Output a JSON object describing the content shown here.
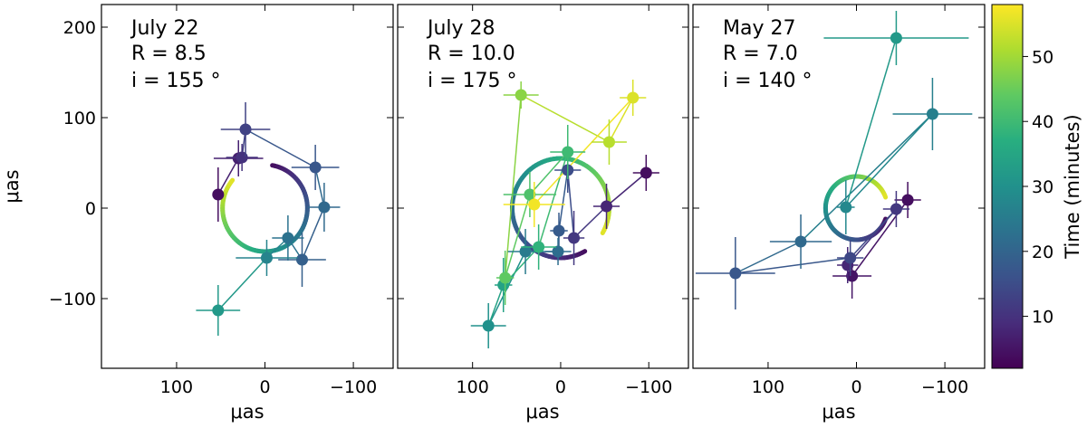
{
  "chart_data": {
    "type": "scatter",
    "xlabel": "μas",
    "ylabel": "μas",
    "xlim": [
      185,
      -145
    ],
    "ylim": [
      -177,
      225
    ],
    "x_ticks": [
      100,
      0,
      -100
    ],
    "x_tick_labels": [
      "100",
      "0",
      "−100"
    ],
    "y_ticks": [
      200,
      100,
      0,
      -100
    ],
    "y_tick_labels": [
      "200",
      "100",
      "0",
      "−100"
    ],
    "colorbar": {
      "label": "Time (minutes)",
      "min": 2,
      "max": 58,
      "ticks": [
        10,
        20,
        30,
        40,
        50
      ],
      "tick_labels": [
        "10",
        "20",
        "30",
        "40",
        "50"
      ],
      "colormap": "viridis"
    },
    "panels": [
      {
        "date": "July 22",
        "r_text": "R = 8.5",
        "i_text": "i = 155 °",
        "R": 8.5,
        "inclination": 155,
        "model_orbit": {
          "center": [
            0,
            0
          ],
          "radius": 48,
          "start_angle_deg": 80,
          "sweep_deg": -300,
          "t_start": 4,
          "t_end": 56
        },
        "points": [
          {
            "x": 53,
            "y": 15,
            "xerr": 0,
            "yerr": 30,
            "t": 4
          },
          {
            "x": 30,
            "y": 55,
            "xerr": 28,
            "yerr": 20,
            "t": 7
          },
          {
            "x": 26,
            "y": 56,
            "xerr": 18,
            "yerr": 15,
            "t": 10
          },
          {
            "x": 22,
            "y": 87,
            "xerr": 28,
            "yerr": 30,
            "t": 13
          },
          {
            "x": -57,
            "y": 45,
            "xerr": 27,
            "yerr": 25,
            "t": 17
          },
          {
            "x": -67,
            "y": 1,
            "xerr": 18,
            "yerr": 27,
            "t": 21
          },
          {
            "x": -42,
            "y": -57,
            "xerr": 27,
            "yerr": 30,
            "t": 19
          },
          {
            "x": -26,
            "y": -33,
            "xerr": 18,
            "yerr": 25,
            "t": 23
          },
          {
            "x": -2,
            "y": -55,
            "xerr": 35,
            "yerr": 20,
            "t": 27
          },
          {
            "x": 53,
            "y": -113,
            "xerr": 25,
            "yerr": 28,
            "t": 32
          }
        ]
      },
      {
        "date": "July 28",
        "r_text": "R = 10.0",
        "i_text": "i = 175 °",
        "R": 10.0,
        "inclination": 175,
        "model_orbit": {
          "center": [
            0,
            0
          ],
          "radius": 55,
          "start_angle_deg": -60,
          "sweep_deg": -330,
          "t_start": 4,
          "t_end": 56
        },
        "points": [
          {
            "x": -97,
            "y": 39,
            "xerr": 15,
            "yerr": 20,
            "t": 4
          },
          {
            "x": -52,
            "y": 2,
            "xerr": 15,
            "yerr": 25,
            "t": 8
          },
          {
            "x": -15,
            "y": -33,
            "xerr": 12,
            "yerr": 30,
            "t": 11
          },
          {
            "x": -8,
            "y": 42,
            "xerr": 15,
            "yerr": 25,
            "t": 15
          },
          {
            "x": 2,
            "y": -25,
            "xerr": 10,
            "yerr": 20,
            "t": 18
          },
          {
            "x": 3,
            "y": -48,
            "xerr": 15,
            "yerr": 15,
            "t": 22
          },
          {
            "x": 40,
            "y": -48,
            "xerr": 20,
            "yerr": 25,
            "t": 25
          },
          {
            "x": 82,
            "y": -130,
            "xerr": 20,
            "yerr": 25,
            "t": 30
          },
          {
            "x": 65,
            "y": -85,
            "xerr": 10,
            "yerr": 30,
            "t": 34
          },
          {
            "x": 25,
            "y": -43,
            "xerr": 20,
            "yerr": 25,
            "t": 38
          },
          {
            "x": -8,
            "y": 62,
            "xerr": 20,
            "yerr": 30,
            "t": 40
          },
          {
            "x": 35,
            "y": 15,
            "xerr": 30,
            "yerr": 25,
            "t": 42
          },
          {
            "x": 63,
            "y": -77,
            "xerr": 10,
            "yerr": 30,
            "t": 44
          },
          {
            "x": 45,
            "y": 125,
            "xerr": 20,
            "yerr": 15,
            "t": 48
          },
          {
            "x": -55,
            "y": 73,
            "xerr": 20,
            "yerr": 25,
            "t": 52
          },
          {
            "x": -82,
            "y": 122,
            "xerr": 15,
            "yerr": 20,
            "t": 55
          },
          {
            "x": 30,
            "y": 4,
            "xerr": 35,
            "yerr": 25,
            "t": 57
          }
        ]
      },
      {
        "date": "May 27",
        "r_text": "R = 7.0",
        "i_text": "i = 140 °",
        "R": 7.0,
        "inclination": 140,
        "model_orbit": {
          "center": [
            0,
            0
          ],
          "radius": 35,
          "start_angle_deg": -20,
          "sweep_deg": -320,
          "t_start": 4,
          "t_end": 56
        },
        "points": [
          {
            "x": -58,
            "y": 9,
            "xerr": 15,
            "yerr": 20,
            "t": 4
          },
          {
            "x": 5,
            "y": -75,
            "xerr": 22,
            "yerr": 25,
            "t": 5
          },
          {
            "x": 10,
            "y": -63,
            "xerr": 12,
            "yerr": 20,
            "t": 8
          },
          {
            "x": -45,
            "y": -1,
            "xerr": 15,
            "yerr": 20,
            "t": 11
          },
          {
            "x": 7,
            "y": -55,
            "xerr": 15,
            "yerr": 20,
            "t": 14
          },
          {
            "x": 137,
            "y": -72,
            "xerr": 45,
            "yerr": 40,
            "t": 17
          },
          {
            "x": 63,
            "y": -37,
            "xerr": 35,
            "yerr": 30,
            "t": 21
          },
          {
            "x": -86,
            "y": 104,
            "xerr": 45,
            "yerr": 40,
            "t": 26
          },
          {
            "x": 12,
            "y": 1,
            "xerr": 10,
            "yerr": 30,
            "t": 28
          },
          {
            "x": -45,
            "y": 188,
            "xerr": 82,
            "yerr": 30,
            "t": 32
          }
        ]
      }
    ]
  }
}
